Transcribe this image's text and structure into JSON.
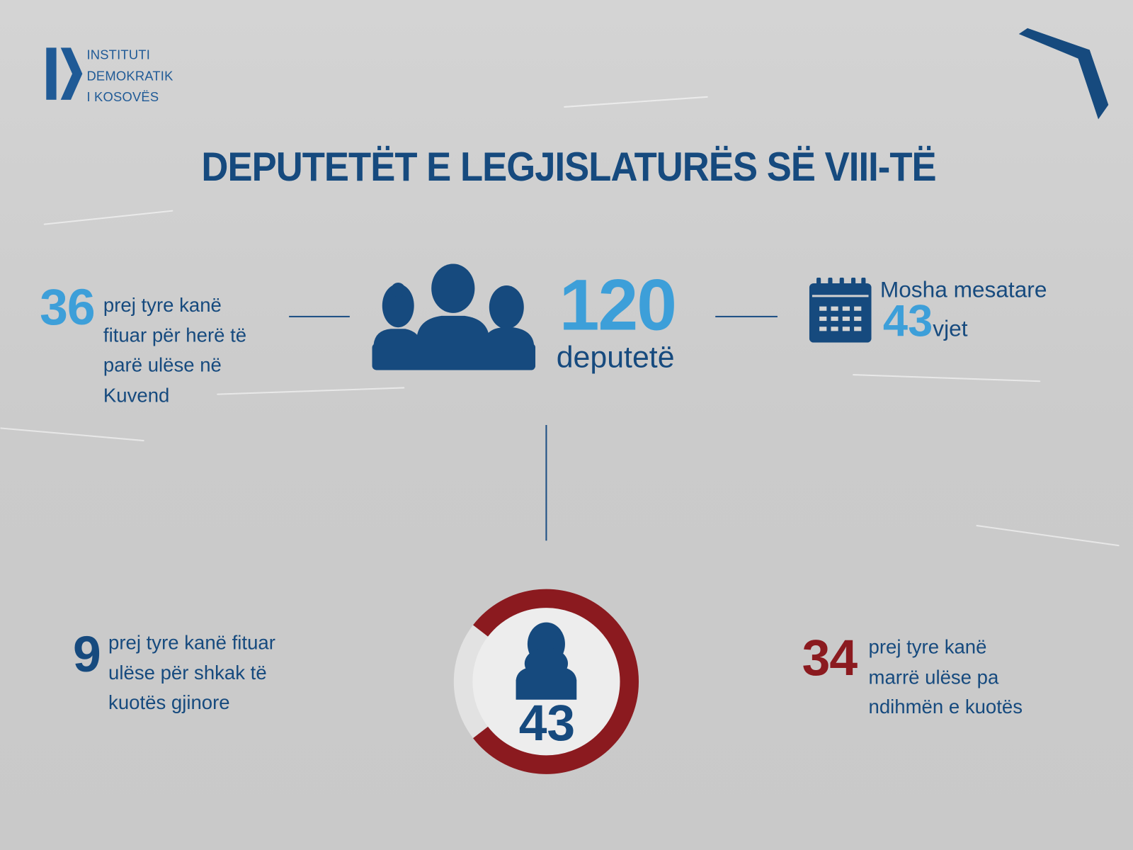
{
  "logo": {
    "lines": [
      "INSTITUTI",
      "DEMOKRATIK",
      "I KOSOVËS"
    ],
    "icon": "idk-logo-icon"
  },
  "title": "DEPUTETËT E LEGJISLATURËS SË VIII-TË",
  "colors": {
    "dark_blue": "#164a7e",
    "light_blue": "#3d9fd9",
    "red": "#8b1a1f",
    "background": "#cdcdcd"
  },
  "total": {
    "number": "120",
    "label": "deputetë",
    "icon": "people-group-icon"
  },
  "first_time": {
    "number": "36",
    "text_lines": [
      "prej tyre kanë",
      "fituar për herë të",
      "parë ulëse në",
      "Kuvend"
    ]
  },
  "age": {
    "label": "Mosha mesatare",
    "number": "43",
    "unit": "vjet",
    "icon": "calendar-icon"
  },
  "women": {
    "number": "43",
    "icon": "woman-icon",
    "quota_share": 9,
    "non_quota_share": 34
  },
  "quota": {
    "number": "9",
    "text_lines": [
      "prej tyre kanë fituar",
      "ulëse për shkak të",
      "kuotës gjinore"
    ]
  },
  "no_quota": {
    "number": "34",
    "text_lines": [
      "prej tyre kanë",
      "marrë ulëse pa",
      "ndihmën e kuotës"
    ]
  }
}
